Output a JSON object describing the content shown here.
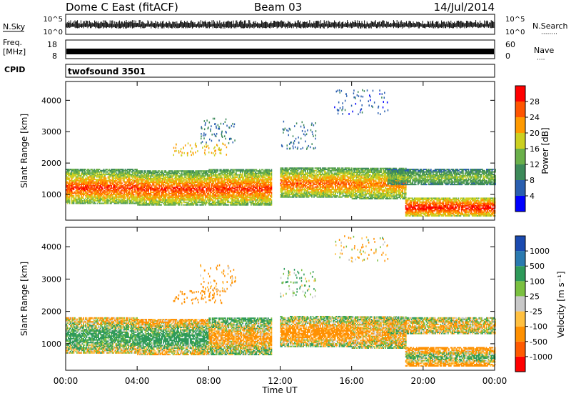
{
  "header": {
    "title": "Dome C East (fitACF)",
    "beam": "Beam 03",
    "date": "14/Jul/2014"
  },
  "side_labels": {
    "nsky": "N.Sky",
    "freq_line1": "Freq.",
    "freq_line2": "[MHz]",
    "cpid": "CPID",
    "nsearch": "N.Search",
    "nsearch_dots": "········",
    "nave": "Nave",
    "nave_dots": "····"
  },
  "noise_panel": {
    "left_ticks": [
      "10^5",
      "10^0"
    ],
    "right_ticks": [
      "10^5",
      "10^0"
    ]
  },
  "freq_panel": {
    "left_ticks": [
      "18",
      "8"
    ],
    "right_ticks": [
      "60",
      "0"
    ]
  },
  "cpid_panel": {
    "text": "twofsound 3501"
  },
  "axes": {
    "ylabel": "Slant Range [km]",
    "xlabel": "Time UT"
  },
  "colors": {
    "power_scale": [
      "#0000ff",
      "#2a5fb0",
      "#3d8a5a",
      "#6ab04a",
      "#ccd020",
      "#ff9a00",
      "#ff5500",
      "#ff0000"
    ],
    "velocity_scale": [
      "#ff0000",
      "#ff5a00",
      "#ff9000",
      "#ffc040",
      "#c8c8c8",
      "#7ac040",
      "#2e9a5a",
      "#2a7ab0",
      "#1a4ab0"
    ]
  },
  "chart_data": [
    {
      "type": "heatmap",
      "name": "power",
      "title": "",
      "xlabel": "Time UT",
      "ylabel": "Slant Range [km]",
      "x_ticks": [
        "00:00",
        "04:00",
        "08:00",
        "12:00",
        "16:00",
        "20:00",
        "00:00"
      ],
      "xlim_hours": [
        0,
        24
      ],
      "y_ticks": [
        1000,
        2000,
        3000,
        4000
      ],
      "ylim": [
        180,
        4600
      ],
      "colorbar": {
        "label": "Power [dB]",
        "ticks": [
          4,
          8,
          12,
          16,
          20,
          24,
          28
        ],
        "range": [
          0,
          32
        ]
      },
      "bands": [
        {
          "t0": 0,
          "t1": 4,
          "r_lo": 700,
          "r_hi": 1800,
          "value_core": 28,
          "value_edge": 12
        },
        {
          "t0": 4,
          "t1": 8,
          "r_lo": 650,
          "r_hi": 1750,
          "value_core": 28,
          "value_edge": 12
        },
        {
          "t0": 8,
          "t1": 11.5,
          "r_lo": 650,
          "r_hi": 1800,
          "value_core": 28,
          "value_edge": 12
        },
        {
          "t0": 12,
          "t1": 16,
          "r_lo": 900,
          "r_hi": 1850,
          "value_core": 26,
          "value_edge": 12
        },
        {
          "t0": 16,
          "t1": 19,
          "r_lo": 850,
          "r_hi": 1850,
          "value_core": 24,
          "value_edge": 12
        },
        {
          "t0": 19,
          "t1": 24,
          "r_lo": 300,
          "r_hi": 900,
          "value_core": 30,
          "value_edge": 16
        },
        {
          "t0": 18,
          "t1": 24,
          "r_lo": 1300,
          "r_hi": 1800,
          "value_core": 16,
          "value_edge": 8
        }
      ],
      "sparse_echoes": [
        {
          "t0": 7.5,
          "t1": 9.5,
          "r_lo": 2600,
          "r_hi": 3400,
          "value": 8
        },
        {
          "t0": 12,
          "t1": 14,
          "r_lo": 2400,
          "r_hi": 3300,
          "value": 8
        },
        {
          "t0": 6,
          "t1": 9,
          "r_lo": 2200,
          "r_hi": 2600,
          "value": 20
        },
        {
          "t0": 15,
          "t1": 18,
          "r_lo": 3500,
          "r_hi": 4300,
          "value": 6
        }
      ]
    },
    {
      "type": "heatmap",
      "name": "velocity",
      "title": "",
      "xlabel": "Time UT",
      "ylabel": "Slant Range [km]",
      "x_ticks": [
        "00:00",
        "04:00",
        "08:00",
        "12:00",
        "16:00",
        "20:00",
        "00:00"
      ],
      "xlim_hours": [
        0,
        24
      ],
      "y_ticks": [
        1000,
        2000,
        3000,
        4000
      ],
      "ylim": [
        180,
        4600
      ],
      "colorbar": {
        "label": "Velocity [m s⁻¹]",
        "ticks": [
          "-1000",
          "-500",
          "-100",
          "-25",
          "25",
          "100",
          "500",
          "1000"
        ],
        "range": [
          -2000,
          2000
        ]
      },
      "bands": [
        {
          "t0": 0,
          "t1": 4,
          "r_lo": 700,
          "r_hi": 1800,
          "value_core": 250,
          "value_edge": -100
        },
        {
          "t0": 4,
          "t1": 8,
          "r_lo": 650,
          "r_hi": 1750,
          "value_core": 300,
          "value_edge": -150
        },
        {
          "t0": 8,
          "t1": 11.5,
          "r_lo": 650,
          "r_hi": 1800,
          "value_core": -200,
          "value_edge": 150
        },
        {
          "t0": 12,
          "t1": 16,
          "r_lo": 900,
          "r_hi": 1850,
          "value_core": -300,
          "value_edge": 100
        },
        {
          "t0": 16,
          "t1": 19,
          "r_lo": 850,
          "r_hi": 1850,
          "value_core": -150,
          "value_edge": 50
        },
        {
          "t0": 19,
          "t1": 24,
          "r_lo": 300,
          "r_hi": 900,
          "value_core": 150,
          "value_edge": -300
        },
        {
          "t0": 18,
          "t1": 24,
          "r_lo": 1300,
          "r_hi": 1800,
          "value_core": -100,
          "value_edge": 50
        }
      ],
      "sparse_echoes": [
        {
          "t0": 7.5,
          "t1": 9.5,
          "r_lo": 2600,
          "r_hi": 3400,
          "value": -150
        },
        {
          "t0": 12,
          "t1": 14,
          "r_lo": 2400,
          "r_hi": 3300,
          "value": 100
        },
        {
          "t0": 6,
          "t1": 9,
          "r_lo": 2200,
          "r_hi": 2600,
          "value": -300
        },
        {
          "t0": 15,
          "t1": 18,
          "r_lo": 3500,
          "r_hi": 4300,
          "value": -50
        }
      ]
    }
  ]
}
